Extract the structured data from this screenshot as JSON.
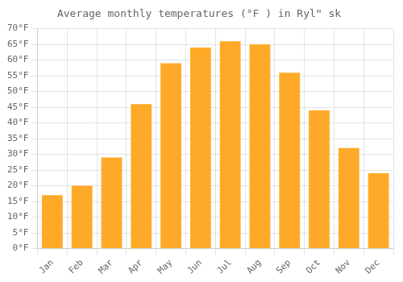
{
  "chart_data": {
    "type": "bar",
    "title": "Average monthly temperatures (°F ) in Rylʺ sk",
    "categories": [
      "Jan",
      "Feb",
      "Mar",
      "Apr",
      "May",
      "Jun",
      "Jul",
      "Aug",
      "Sep",
      "Oct",
      "Nov",
      "Dec"
    ],
    "values": [
      17,
      20,
      29,
      46,
      59,
      64,
      66,
      65,
      56,
      44,
      32,
      24
    ],
    "color": "#FFA928",
    "ylim": [
      0,
      70
    ],
    "yticks": [
      {
        "value": 0,
        "label": "0°F"
      },
      {
        "value": 5,
        "label": "5°F"
      },
      {
        "value": 10,
        "label": "10°F"
      },
      {
        "value": 15,
        "label": "15°F"
      },
      {
        "value": 20,
        "label": "20°F"
      },
      {
        "value": 25,
        "label": "25°F"
      },
      {
        "value": 30,
        "label": "30°F"
      },
      {
        "value": 35,
        "label": "35°F"
      },
      {
        "value": 40,
        "label": "40°F"
      },
      {
        "value": 45,
        "label": "45°F"
      },
      {
        "value": 50,
        "label": "50°F"
      },
      {
        "value": 55,
        "label": "55°F"
      },
      {
        "value": 60,
        "label": "60°F"
      },
      {
        "value": 65,
        "label": "65°F"
      },
      {
        "value": 70,
        "label": "70°F"
      }
    ],
    "grid": true
  }
}
